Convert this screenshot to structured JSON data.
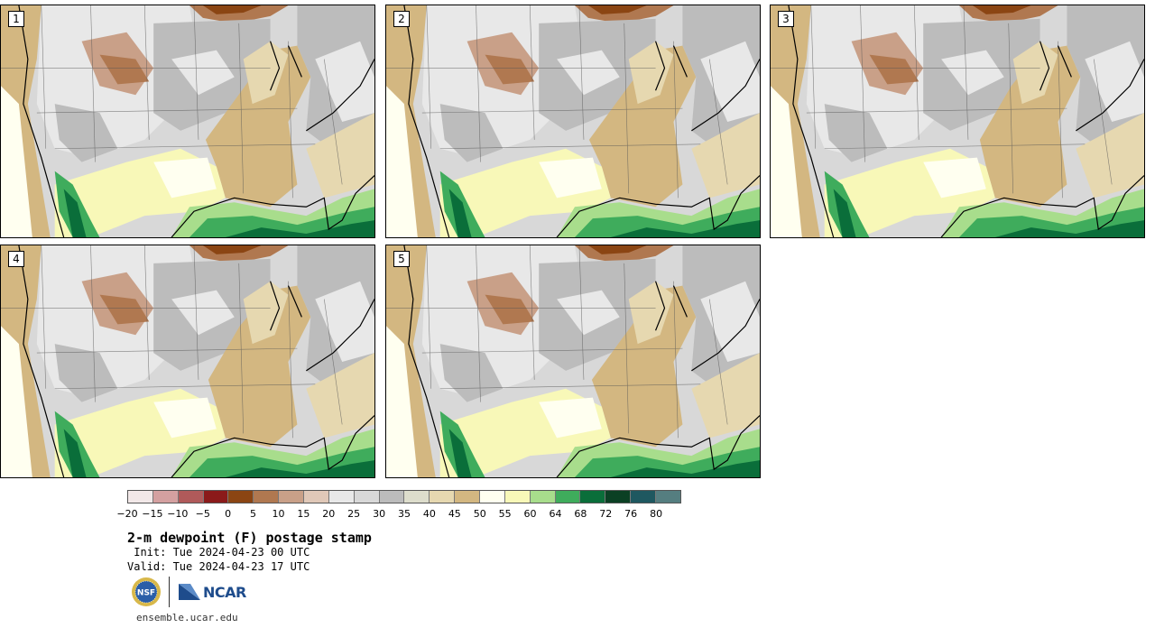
{
  "panels": [
    {
      "number": "1",
      "row": 0,
      "col": 0
    },
    {
      "number": "2",
      "row": 0,
      "col": 1
    },
    {
      "number": "3",
      "row": 0,
      "col": 2
    },
    {
      "number": "4",
      "row": 1,
      "col": 0
    },
    {
      "number": "5",
      "row": 1,
      "col": 1
    }
  ],
  "colorbar": {
    "colors": [
      "#f2e8e8",
      "#d4a0a0",
      "#b05a5a",
      "#8b1a1a",
      "#8b4513",
      "#b07850",
      "#c9a088",
      "#e0c8b8",
      "#e8e8e8",
      "#d8d8d8",
      "#bcbcbc",
      "#ddddcc",
      "#e6d8b0",
      "#d3b781",
      "#fffff0",
      "#f8f8b8",
      "#a8dd8c",
      "#3fac5c",
      "#0a6e3a",
      "#0b4024",
      "#1f5860",
      "#557e80"
    ],
    "tick_labels": [
      "−20",
      "−15",
      "−10",
      "−5",
      "0",
      "5",
      "10",
      "15",
      "20",
      "25",
      "30",
      "35",
      "40",
      "45",
      "50",
      "55",
      "60",
      "64",
      "68",
      "72",
      "76",
      "80"
    ]
  },
  "title": "2-m dewpoint (F) postage stamp",
  "init_text": " Init: Tue 2024-04-23 00 UTC",
  "valid_text": "Valid: Tue 2024-04-23 17 UTC",
  "logos": {
    "nsf": "NSF",
    "ncar": "NCAR"
  },
  "footer_url": "ensemble.ucar.edu"
}
